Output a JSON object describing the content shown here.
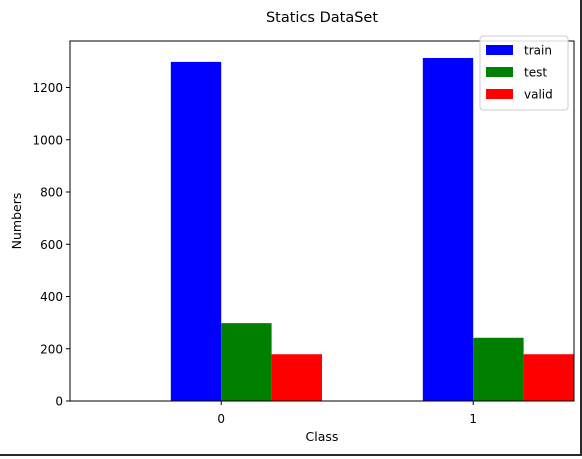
{
  "chart_data": {
    "type": "bar",
    "title": "Statics DataSet",
    "xlabel": "Class",
    "ylabel": "Numbers",
    "categories": [
      "0",
      "1"
    ],
    "series": [
      {
        "name": "train",
        "color": "#0000ff",
        "values": [
          1298,
          1313
        ]
      },
      {
        "name": "test",
        "color": "#008000",
        "values": [
          298,
          242
        ]
      },
      {
        "name": "valid",
        "color": "#ff0000",
        "values": [
          179,
          179
        ]
      }
    ],
    "ylim": [
      0,
      1378
    ],
    "yticks": [
      0,
      200,
      400,
      600,
      800,
      1000,
      1200
    ],
    "grid": false,
    "legend": "top-right"
  }
}
